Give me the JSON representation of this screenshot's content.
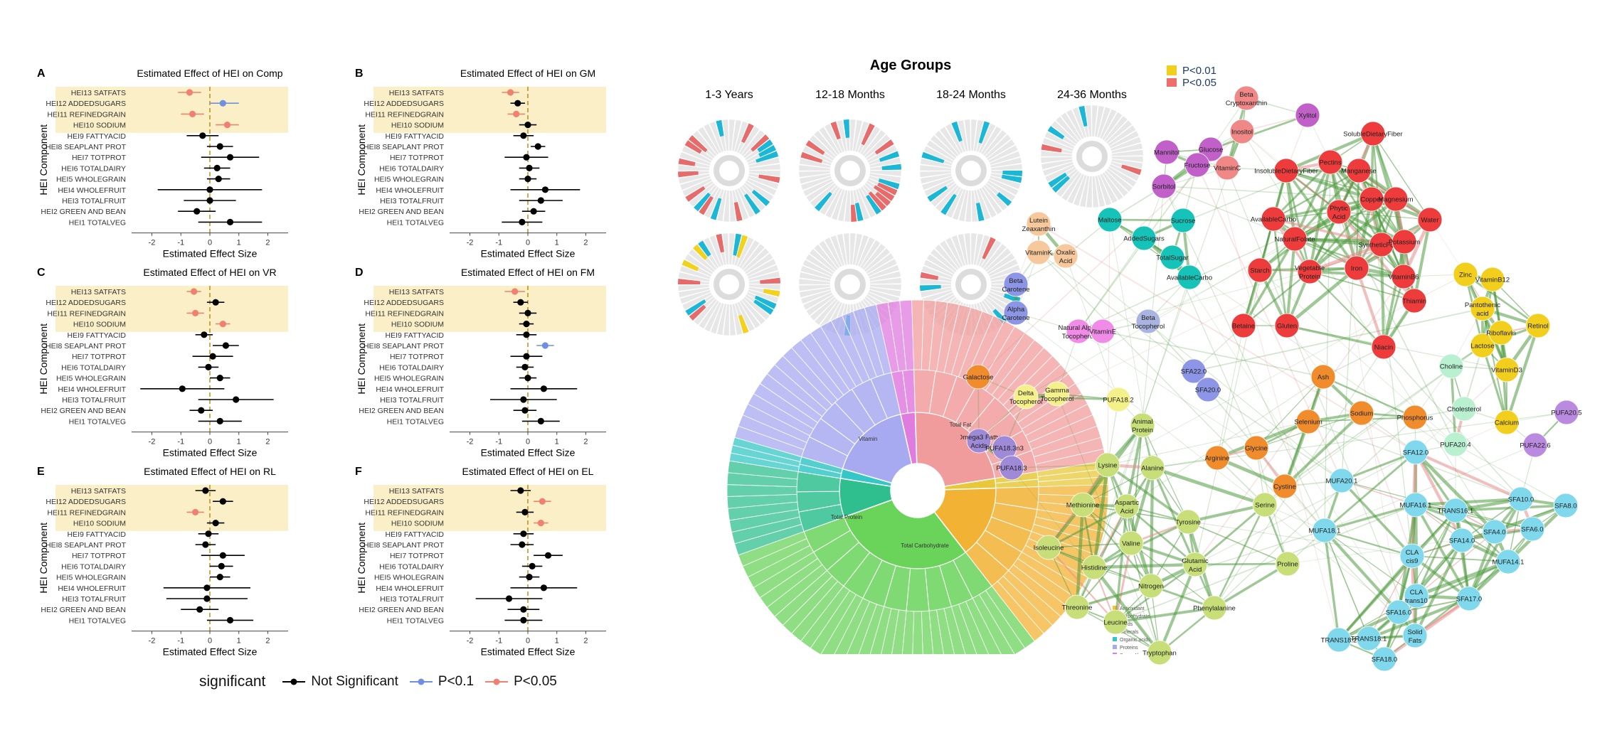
{
  "forest": {
    "row_labels": [
      "HEI13 SATFATS",
      "HEI12 ADDEDSUGARS",
      "HEI11 REFINEDGRAIN",
      "HEI10 SODIUM",
      "HEI9 FATTYACID",
      "HEI8 SEAPLANT PROT",
      "HEI7 TOTPROT",
      "HEI6 TOTALDAIRY",
      "HEI5 WHOLEGRAIN",
      "HEI4 WHOLEFRUIT",
      "HEI3 TOTALFRUIT",
      "HEI2 GREEN AND BEAN",
      "HEI1 TOTALVEG"
    ],
    "ylabel": "HEI Component",
    "xlabel": "Estimated Effect Size",
    "xticks": [
      "-2",
      "-1",
      "0",
      "1",
      "2"
    ],
    "xlim": [
      -2.7,
      2.7
    ],
    "highlight_rows": 4,
    "colors": {
      "ns": "#000000",
      "p01": "#6f8fe0",
      "p005": "#f08070",
      "highlight": "#fbefc8"
    }
  },
  "chart_data": [
    {
      "type": "forest",
      "letter": "A",
      "title": "Estimated Effect of HEI on Comp",
      "est": [
        -0.7,
        -0.35,
        -0.6,
        0.6,
        -0.25,
        0.35,
        0.7,
        0.25,
        0.3,
        0.0,
        0.0,
        -0.45,
        0.7
      ],
      "lo": [
        -1.1,
        -0.9,
        -1.0,
        0.2,
        -0.8,
        -0.1,
        -0.3,
        -0.2,
        -0.1,
        -1.8,
        -0.9,
        -1.1,
        -0.4
      ],
      "hi": [
        -0.3,
        0.2,
        -0.2,
        1.0,
        0.3,
        0.8,
        1.7,
        0.7,
        0.7,
        1.8,
        0.9,
        0.2,
        1.8
      ],
      "sig": [
        "p005",
        "ns",
        "p005",
        "p005",
        "ns",
        "ns",
        "ns",
        "ns",
        "ns",
        "ns",
        "ns",
        "ns",
        "ns"
      ],
      "override": {
        "1": {
          "est": 0.45,
          "lo": 0.0,
          "hi": 1.0,
          "sig": "p01"
        }
      }
    },
    {
      "type": "forest",
      "letter": "B",
      "title": "Estimated Effect of HEI on GM",
      "est": [
        -0.6,
        -0.35,
        -0.4,
        0.0,
        -0.15,
        0.35,
        -0.05,
        0.05,
        0.0,
        0.6,
        0.45,
        0.2,
        -0.2
      ],
      "lo": [
        -0.9,
        -0.6,
        -0.7,
        -0.3,
        -0.5,
        0.1,
        -0.8,
        -0.3,
        -0.3,
        -0.6,
        -0.3,
        -0.2,
        -0.9
      ],
      "hi": [
        -0.3,
        -0.1,
        -0.1,
        0.3,
        0.2,
        0.6,
        0.7,
        0.4,
        0.3,
        1.8,
        1.2,
        0.6,
        0.5
      ],
      "sig": [
        "p005",
        "ns",
        "p005",
        "ns",
        "ns",
        "ns",
        "ns",
        "ns",
        "ns",
        "ns",
        "ns",
        "ns",
        "ns"
      ]
    },
    {
      "type": "forest",
      "letter": "C",
      "title": "Estimated Effect of HEI on VR",
      "est": [
        -0.55,
        0.2,
        -0.5,
        0.45,
        -0.2,
        0.55,
        0.1,
        -0.05,
        0.35,
        -0.95,
        0.9,
        -0.3,
        0.35
      ],
      "lo": [
        -0.8,
        -0.1,
        -0.8,
        0.2,
        -0.5,
        0.1,
        -0.6,
        -0.4,
        0.0,
        -2.4,
        -0.4,
        -0.7,
        -0.4
      ],
      "hi": [
        -0.3,
        0.5,
        -0.2,
        0.7,
        0.1,
        1.0,
        0.8,
        0.3,
        0.7,
        0.5,
        2.2,
        0.1,
        1.1
      ],
      "sig": [
        "p005",
        "ns",
        "p005",
        "p005",
        "ns",
        "ns",
        "ns",
        "ns",
        "ns",
        "ns",
        "ns",
        "ns",
        "ns"
      ]
    },
    {
      "type": "forest",
      "letter": "D",
      "title": "Estimated Effect of HEI on FM",
      "est": [
        -0.45,
        -0.25,
        0.0,
        -0.05,
        -0.05,
        0.6,
        -0.05,
        -0.1,
        0.0,
        0.55,
        -0.15,
        -0.1,
        0.45
      ],
      "lo": [
        -0.8,
        -0.5,
        -0.3,
        -0.3,
        -0.4,
        0.3,
        -0.6,
        -0.4,
        -0.3,
        -0.6,
        -1.3,
        -0.5,
        -0.2
      ],
      "hi": [
        -0.1,
        0.0,
        0.3,
        0.2,
        0.3,
        0.9,
        0.5,
        0.2,
        0.3,
        1.7,
        1.0,
        0.3,
        1.1
      ],
      "sig": [
        "p005",
        "ns",
        "ns",
        "ns",
        "ns",
        "p01",
        "ns",
        "ns",
        "ns",
        "ns",
        "ns",
        "ns",
        "ns"
      ]
    },
    {
      "type": "forest",
      "letter": "E",
      "title": "Estimated Effect of HEI on RL",
      "est": [
        -0.15,
        0.45,
        -0.5,
        0.2,
        -0.05,
        -0.15,
        0.45,
        0.4,
        0.35,
        -0.1,
        -0.1,
        -0.35,
        0.7
      ],
      "lo": [
        -0.5,
        0.1,
        -0.8,
        -0.1,
        -0.4,
        -0.5,
        -0.3,
        0.0,
        0.0,
        -1.6,
        -1.5,
        -1.0,
        -0.1
      ],
      "hi": [
        0.2,
        0.8,
        -0.2,
        0.5,
        0.3,
        0.2,
        1.2,
        0.8,
        0.7,
        1.4,
        1.3,
        0.3,
        1.5
      ],
      "sig": [
        "ns",
        "ns",
        "p005",
        "ns",
        "ns",
        "ns",
        "ns",
        "ns",
        "ns",
        "ns",
        "ns",
        "ns",
        "ns"
      ]
    },
    {
      "type": "forest",
      "letter": "F",
      "title": "Estimated Effect of HEI on EL",
      "est": [
        -0.25,
        0.5,
        -0.1,
        0.45,
        -0.15,
        -0.2,
        0.7,
        0.15,
        0.05,
        0.55,
        -0.65,
        -0.15,
        -0.15
      ],
      "lo": [
        -0.6,
        0.2,
        -0.4,
        0.2,
        -0.5,
        -0.6,
        0.2,
        -0.2,
        -0.3,
        -0.6,
        -1.8,
        -0.7,
        -0.8
      ],
      "hi": [
        0.1,
        0.8,
        0.2,
        0.7,
        0.2,
        0.2,
        1.2,
        0.5,
        0.4,
        1.7,
        0.5,
        0.4,
        0.5
      ],
      "sig": [
        "ns",
        "p005",
        "ns",
        "p005",
        "ns",
        "ns",
        "ns",
        "ns",
        "ns",
        "ns",
        "ns",
        "ns",
        "ns"
      ]
    }
  ],
  "legend": {
    "title": "significant",
    "items": [
      {
        "label": "Not Significant",
        "key": "ns"
      },
      {
        "label": "P<0.1",
        "key": "p01"
      },
      {
        "label": "P<0.05",
        "key": "p005"
      }
    ]
  },
  "sunburst": {
    "heading": "Age Groups",
    "groups": [
      "1-3 Years",
      "12-18 Months",
      "18-24 Months",
      "24-36 Months"
    ],
    "categories": [
      {
        "name": "Antioxidant",
        "color": "#e8c83a",
        "share": 2
      },
      {
        "name": "Carbohydrate",
        "color": "#f2b233",
        "share": 15
      },
      {
        "name": "Lipids",
        "color": "#6ad35a",
        "share": 30
      },
      {
        "name": "Minerals",
        "color": "#2fbf8f",
        "share": 8
      },
      {
        "name": "Organic acids",
        "color": "#35c7c7",
        "share": 2
      },
      {
        "name": "Proteins",
        "color": "#a7aaf0",
        "share": 17
      },
      {
        "name": "Sugar Alcohol",
        "color": "#e07be0",
        "share": 3
      },
      {
        "name": "Vitamin",
        "color": "#f19c9c",
        "share": 23
      }
    ],
    "inner_labels": [
      "Total Fat",
      "Total Protein",
      "Total Carbohydrate",
      "Vitamin"
    ],
    "legend_labels": [
      "Antioxidant",
      "Carbohydrate",
      "Lipids",
      "Minerals",
      "Organic acids",
      "Proteins",
      "Sugar Alcohol",
      "Vitamin"
    ]
  },
  "network": {
    "legend": [
      {
        "label": "P<0.01",
        "color": "#f2cf1c"
      },
      {
        "label": "P<0.05",
        "color": "#ee6e6e"
      }
    ],
    "nodes": [
      {
        "label": "Beta Cryptoxanthin",
        "color": "#f08888"
      },
      {
        "label": "Xylitol",
        "color": "#c060c8"
      },
      {
        "label": "Inositol",
        "color": "#f08888"
      },
      {
        "label": "SolubleDietaryFiber",
        "color": "#ee3b3b"
      },
      {
        "label": "Mannitol",
        "color": "#c060c8"
      },
      {
        "label": "Glucose",
        "color": "#c060c8"
      },
      {
        "label": "Fructose",
        "color": "#c060c8"
      },
      {
        "label": "VitaminC",
        "color": "#f08888"
      },
      {
        "label": "Pectins",
        "color": "#ee3b3b"
      },
      {
        "label": "Manganese",
        "color": "#ee3b3b"
      },
      {
        "label": "InsolubleDietaryFiber",
        "color": "#ee3b3b"
      },
      {
        "label": "Sorbitol",
        "color": "#c060c8"
      },
      {
        "label": "Copper",
        "color": "#ee3b3b"
      },
      {
        "label": "Magnesium",
        "color": "#ee3b3b"
      },
      {
        "label": "Phytic Acid",
        "color": "#ee3b3b"
      },
      {
        "label": "AvailableCarbo",
        "color": "#ee3b3b"
      },
      {
        "label": "Water",
        "color": "#ee3b3b"
      },
      {
        "label": "Lutein Zeaxanthin",
        "color": "#f6c89c"
      },
      {
        "label": "Maltose",
        "color": "#15c3b8"
      },
      {
        "label": "Sucrose",
        "color": "#15c3b8"
      },
      {
        "label": "NaturalFolate",
        "color": "#ee3b3b"
      },
      {
        "label": "SyntheticFolate",
        "color": "#ee3b3b"
      },
      {
        "label": "Potassium",
        "color": "#ee3b3b"
      },
      {
        "label": "VitaminK",
        "color": "#f6c89c"
      },
      {
        "label": "Oxalic Acid",
        "color": "#f6c89c"
      },
      {
        "label": "AddedSugars",
        "color": "#15c3b8"
      },
      {
        "label": "TotalSugar",
        "color": "#15c3b8"
      },
      {
        "label": "AvailableCarbo",
        "color": "#15c3b8"
      },
      {
        "label": "Vegetable Protein",
        "color": "#ee3b3b"
      },
      {
        "label": "Starch",
        "color": "#ee3b3b"
      },
      {
        "label": "Iron",
        "color": "#ee3b3b"
      },
      {
        "label": "VitaminB6",
        "color": "#ee3b3b"
      },
      {
        "label": "Zinc",
        "color": "#f2cf1c"
      },
      {
        "label": "VitaminB12",
        "color": "#f2cf1c"
      },
      {
        "label": "Beta Carotene",
        "color": "#8d95e6"
      },
      {
        "label": "Thiamin",
        "color": "#ee3b3b"
      },
      {
        "label": "Pantothenic acid",
        "color": "#f2cf1c"
      },
      {
        "label": "Alpha Carotene",
        "color": "#8d95e6"
      },
      {
        "label": "Betaine",
        "color": "#ee3b3b"
      },
      {
        "label": "Gluten",
        "color": "#ee3b3b"
      },
      {
        "label": "Beta Tocopherol",
        "color": "#aab4e0"
      },
      {
        "label": "Natural Alpha Tocopherol",
        "color": "#f08ce8"
      },
      {
        "label": "VitaminE",
        "color": "#f08ce8"
      },
      {
        "label": "Lactose",
        "color": "#f2cf1c"
      },
      {
        "label": "Riboflavin",
        "color": "#f2cf1c"
      },
      {
        "label": "Retinol",
        "color": "#f2cf1c"
      },
      {
        "label": "Niacin",
        "color": "#ee3b3b"
      },
      {
        "label": "Choline",
        "color": "#b8f0d0"
      },
      {
        "label": "VitaminD3",
        "color": "#f2cf1c"
      },
      {
        "label": "Galactose",
        "color": "#f08c2c"
      },
      {
        "label": "SFA22.0",
        "color": "#8d95e6"
      },
      {
        "label": "Ash",
        "color": "#f08c2c"
      },
      {
        "label": "Delta Tocopherol",
        "color": "#f4f08a"
      },
      {
        "label": "Gamma Tocopherol",
        "color": "#f4f08a"
      },
      {
        "label": "SFA20.0",
        "color": "#8d95e6"
      },
      {
        "label": "PUFA18.2",
        "color": "#f4f08a"
      },
      {
        "label": "Sodium",
        "color": "#f08c2c"
      },
      {
        "label": "Cholesterol",
        "color": "#b8f0d0"
      },
      {
        "label": "Phosphorus",
        "color": "#f08c2c"
      },
      {
        "label": "Calcium",
        "color": "#f2cf1c"
      },
      {
        "label": "PUFA20.5",
        "color": "#b98ae0"
      },
      {
        "label": "Selenium",
        "color": "#f08c2c"
      },
      {
        "label": "Animal Protein",
        "color": "#c8de78"
      },
      {
        "label": "Omega3 Fatty Acids",
        "color": "#9f8ad8"
      },
      {
        "label": "PUFA18.3n3",
        "color": "#9f8ad8"
      },
      {
        "label": "Glycine",
        "color": "#f08c2c"
      },
      {
        "label": "SFA12.0",
        "color": "#7fd8ec"
      },
      {
        "label": "PUFA20.4",
        "color": "#b8f0d0"
      },
      {
        "label": "PUFA22.6",
        "color": "#b98ae0"
      },
      {
        "label": "PUFA18.3",
        "color": "#9f8ad8"
      },
      {
        "label": "Arginine",
        "color": "#f08c2c"
      },
      {
        "label": "Cystine",
        "color": "#f08c2c"
      },
      {
        "label": "Lysine",
        "color": "#c8de78"
      },
      {
        "label": "Alanine",
        "color": "#c8de78"
      },
      {
        "label": "MUFA20.1",
        "color": "#7fd8ec"
      },
      {
        "label": "SFA10.0",
        "color": "#7fd8ec"
      },
      {
        "label": "SFA8.0",
        "color": "#7fd8ec"
      },
      {
        "label": "MUFA16.1",
        "color": "#7fd8ec"
      },
      {
        "label": "TRANS16.1",
        "color": "#7fd8ec"
      },
      {
        "label": "Methionine",
        "color": "#c8de78"
      },
      {
        "label": "Aspartic Acid",
        "color": "#c8de78"
      },
      {
        "label": "Serine",
        "color": "#c8de78"
      },
      {
        "label": "Tyrosine",
        "color": "#c8de78"
      },
      {
        "label": "MUFA18.1",
        "color": "#7fd8ec"
      },
      {
        "label": "SFA6.0",
        "color": "#7fd8ec"
      },
      {
        "label": "SFA4.0",
        "color": "#7fd8ec"
      },
      {
        "label": "SFA14.0",
        "color": "#7fd8ec"
      },
      {
        "label": "Isoleucine",
        "color": "#c8de78"
      },
      {
        "label": "Valine",
        "color": "#c8de78"
      },
      {
        "label": "CLA cis9",
        "color": "#7fd8ec"
      },
      {
        "label": "Histidine",
        "color": "#c8de78"
      },
      {
        "label": "Glutamic Acid",
        "color": "#c8de78"
      },
      {
        "label": "Proline",
        "color": "#c8de78"
      },
      {
        "label": "Nitrogen",
        "color": "#c8de78"
      },
      {
        "label": "MUFA14.1",
        "color": "#7fd8ec"
      },
      {
        "label": "Threonine",
        "color": "#c8de78"
      },
      {
        "label": "CLA trans10",
        "color": "#7fd8ec"
      },
      {
        "label": "SFA16.0",
        "color": "#7fd8ec"
      },
      {
        "label": "SFA17.0",
        "color": "#7fd8ec"
      },
      {
        "label": "Leucine",
        "color": "#c8de78"
      },
      {
        "label": "Phenylalanine",
        "color": "#c8de78"
      },
      {
        "label": "TRANS18.2",
        "color": "#7fd8ec"
      },
      {
        "label": "TRANS18.1",
        "color": "#7fd8ec"
      },
      {
        "label": "Solid Fats",
        "color": "#7fd8ec"
      },
      {
        "label": "Tryptophan",
        "color": "#c8de78"
      },
      {
        "label": "SFA18.0",
        "color": "#7fd8ec"
      }
    ]
  }
}
